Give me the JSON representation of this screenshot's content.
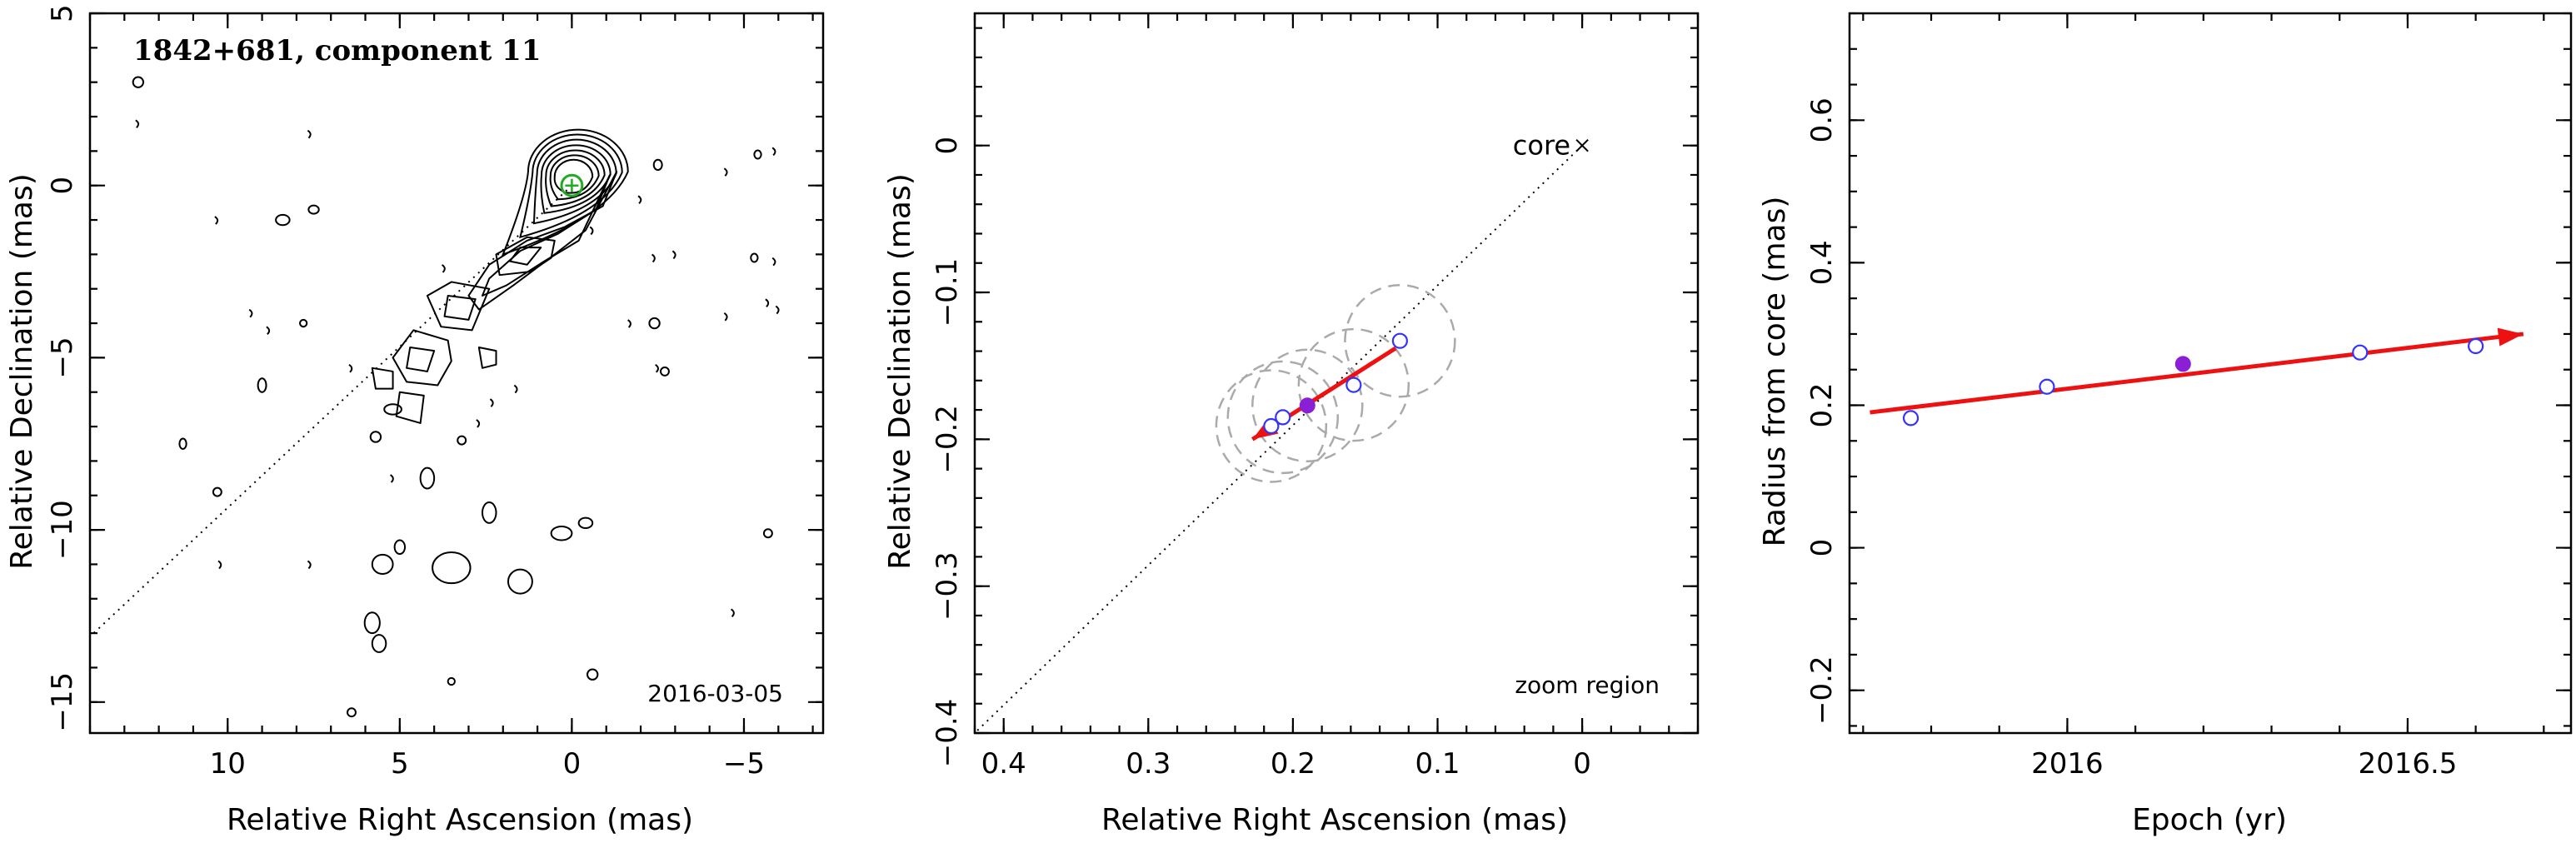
{
  "colors": {
    "arrow": "#ee1111",
    "open_point": "#3333ff",
    "filled_point": "#8a1fd6",
    "beam_circle": "#aaaaaa",
    "core_model": "#22aa22"
  },
  "chart_data": [
    {
      "type": "contour",
      "title": "1842+681, component 11",
      "annotation": "2016-03-05",
      "xlabel": "Relative Right Ascension (mas)",
      "ylabel": "Relative Declination (mas)",
      "xlim": [
        14,
        -7.3
      ],
      "ylim": [
        -15.9,
        5
      ],
      "xticks": [
        10,
        5,
        0,
        -5
      ],
      "yticks": [
        5,
        0,
        -5,
        -10,
        -15
      ],
      "jet_direction_line": {
        "from": [
          0,
          0
        ],
        "to": [
          14,
          -13.1
        ]
      },
      "core_ellipse": {
        "x": 0,
        "y": 0,
        "rx": 0.3,
        "ry": 0.3
      },
      "contours": {
        "core_levels": [
          {
            "cx": -0.05,
            "cy": 0.25,
            "rx": 0.55,
            "ry": 0.5,
            "tail": [
              0.2,
              -0.2
            ]
          },
          {
            "cx": -0.08,
            "cy": 0.28,
            "rx": 0.7,
            "ry": 0.6,
            "tail": [
              0.4,
              -0.4
            ]
          },
          {
            "cx": -0.1,
            "cy": 0.3,
            "rx": 0.85,
            "ry": 0.72,
            "tail": [
              0.6,
              -0.6
            ]
          },
          {
            "cx": -0.12,
            "cy": 0.32,
            "rx": 1.0,
            "ry": 0.85,
            "tail": [
              0.8,
              -0.8
            ]
          },
          {
            "cx": -0.14,
            "cy": 0.35,
            "rx": 1.15,
            "ry": 0.98,
            "tail": [
              1.1,
              -1.1
            ]
          },
          {
            "cx": -0.16,
            "cy": 0.38,
            "rx": 1.3,
            "ry": 1.1,
            "tail": [
              1.5,
              -1.5
            ]
          },
          {
            "cx": -0.18,
            "cy": 0.4,
            "rx": 1.45,
            "ry": 1.22,
            "tail": [
              2.0,
              -2.0
            ]
          }
        ],
        "jet_levels": [
          [
            [
              -1.3,
              0.4
            ],
            [
              -0.9,
              -0.6
            ],
            [
              0.2,
              -1.2
            ],
            [
              1.3,
              -1.6
            ],
            [
              2.4,
              -2.3
            ],
            [
              3.0,
              -3.2
            ],
            [
              2.7,
              -3.6
            ],
            [
              1.7,
              -2.9
            ],
            [
              0.5,
              -2.0
            ],
            [
              -0.4,
              -1.3
            ],
            [
              -1.3,
              0.4
            ]
          ],
          [
            [
              -1.1,
              0.3
            ],
            [
              -0.7,
              -0.7
            ],
            [
              0.4,
              -1.4
            ],
            [
              1.5,
              -1.9
            ],
            [
              2.4,
              -2.7
            ],
            [
              2.6,
              -3.2
            ],
            [
              1.9,
              -2.9
            ],
            [
              0.8,
              -2.2
            ],
            [
              -0.2,
              -1.6
            ],
            [
              -1.1,
              0.3
            ]
          ],
          [
            [
              0.5,
              -1.6
            ],
            [
              1.3,
              -1.5
            ],
            [
              2.2,
              -2.0
            ],
            [
              2.1,
              -2.6
            ],
            [
              1.2,
              -2.5
            ],
            [
              0.6,
              -2.1
            ],
            [
              0.5,
              -1.6
            ]
          ],
          [
            [
              0.9,
              -1.8
            ],
            [
              1.5,
              -1.8
            ],
            [
              1.8,
              -2.2
            ],
            [
              1.3,
              -2.3
            ],
            [
              0.9,
              -1.8
            ]
          ],
          [
            [
              2.4,
              -3.0
            ],
            [
              3.5,
              -2.8
            ],
            [
              4.2,
              -3.2
            ],
            [
              3.8,
              -4.1
            ],
            [
              2.9,
              -4.2
            ],
            [
              2.4,
              -3.0
            ]
          ],
          [
            [
              2.8,
              -3.3
            ],
            [
              3.6,
              -3.2
            ],
            [
              3.7,
              -3.8
            ],
            [
              3.0,
              -3.9
            ],
            [
              2.8,
              -3.3
            ]
          ],
          [
            [
              3.6,
              -4.5
            ],
            [
              4.6,
              -4.2
            ],
            [
              5.2,
              -5.0
            ],
            [
              4.8,
              -5.7
            ],
            [
              3.9,
              -5.8
            ],
            [
              3.5,
              -5.1
            ],
            [
              3.6,
              -4.5
            ]
          ],
          [
            [
              4.0,
              -4.8
            ],
            [
              4.7,
              -4.7
            ],
            [
              4.8,
              -5.3
            ],
            [
              4.2,
              -5.4
            ],
            [
              4.0,
              -4.8
            ]
          ],
          [
            [
              4.3,
              -6.1
            ],
            [
              5.0,
              -6.0
            ],
            [
              5.1,
              -6.7
            ],
            [
              4.4,
              -6.9
            ],
            [
              4.3,
              -6.1
            ]
          ],
          [
            [
              5.2,
              -5.4
            ],
            [
              5.8,
              -5.3
            ],
            [
              5.7,
              -5.9
            ],
            [
              5.2,
              -5.9
            ],
            [
              5.2,
              -5.4
            ]
          ],
          [
            [
              2.2,
              -4.8
            ],
            [
              2.7,
              -4.7
            ],
            [
              2.6,
              -5.3
            ],
            [
              2.2,
              -5.2
            ],
            [
              2.2,
              -4.8
            ]
          ]
        ],
        "islands": [
          {
            "x": 3.5,
            "y": -11.1,
            "rx": 0.55,
            "ry": 0.45
          },
          {
            "x": 1.5,
            "y": -11.5,
            "rx": 0.35,
            "ry": 0.35
          },
          {
            "x": 5.5,
            "y": -11.0,
            "rx": 0.3,
            "ry": 0.28
          },
          {
            "x": 5.8,
            "y": -12.7,
            "rx": 0.22,
            "ry": 0.3
          },
          {
            "x": 5.6,
            "y": -13.3,
            "rx": 0.2,
            "ry": 0.25
          },
          {
            "x": 4.2,
            "y": -8.5,
            "rx": 0.2,
            "ry": 0.3
          },
          {
            "x": 2.4,
            "y": -9.5,
            "rx": 0.2,
            "ry": 0.3
          },
          {
            "x": 5.0,
            "y": -10.5,
            "rx": 0.15,
            "ry": 0.2
          },
          {
            "x": 0.3,
            "y": -10.1,
            "rx": 0.3,
            "ry": 0.2
          },
          {
            "x": -0.4,
            "y": -9.8,
            "rx": 0.2,
            "ry": 0.15
          },
          {
            "x": -2.4,
            "y": -4.0,
            "rx": 0.15,
            "ry": 0.15
          },
          {
            "x": -2.7,
            "y": -5.4,
            "rx": 0.12,
            "ry": 0.12
          },
          {
            "x": 8.4,
            "y": -1.0,
            "rx": 0.2,
            "ry": 0.15
          },
          {
            "x": 7.5,
            "y": -0.7,
            "rx": 0.15,
            "ry": 0.12
          },
          {
            "x": 5.2,
            "y": -6.5,
            "rx": 0.25,
            "ry": 0.15
          },
          {
            "x": 5.7,
            "y": -7.3,
            "rx": 0.15,
            "ry": 0.15
          },
          {
            "x": 3.2,
            "y": -7.4,
            "rx": 0.12,
            "ry": 0.12
          },
          {
            "x": 6.4,
            "y": -15.3,
            "rx": 0.12,
            "ry": 0.12
          },
          {
            "x": 3.5,
            "y": -14.4,
            "rx": 0.1,
            "ry": 0.1
          },
          {
            "x": 12.6,
            "y": 3.0,
            "rx": 0.15,
            "ry": 0.15
          },
          {
            "x": 10.3,
            "y": -8.9,
            "rx": 0.12,
            "ry": 0.12
          },
          {
            "x": 9.0,
            "y": -5.8,
            "rx": 0.12,
            "ry": 0.2
          },
          {
            "x": 11.3,
            "y": -7.5,
            "rx": 0.1,
            "ry": 0.15
          },
          {
            "x": -5.4,
            "y": 0.9,
            "rx": 0.1,
            "ry": 0.12
          },
          {
            "x": -2.5,
            "y": 0.6,
            "rx": 0.12,
            "ry": 0.15
          },
          {
            "x": -5.7,
            "y": -10.1,
            "rx": 0.12,
            "ry": 0.12
          },
          {
            "x": -0.6,
            "y": -14.2,
            "rx": 0.15,
            "ry": 0.15
          },
          {
            "x": -5.3,
            "y": -2.1,
            "rx": 0.1,
            "ry": 0.12
          },
          {
            "x": 7.8,
            "y": -4.0,
            "rx": 0.1,
            "ry": 0.1
          }
        ],
        "marks": [
          {
            "x": 12.6,
            "y": 1.8
          },
          {
            "x": 7.6,
            "y": 1.5
          },
          {
            "x": 10.3,
            "y": -1.0
          },
          {
            "x": 8.8,
            "y": -4.2
          },
          {
            "x": 6.4,
            "y": -5.3
          },
          {
            "x": 2.3,
            "y": -6.3
          },
          {
            "x": 5.2,
            "y": -8.5
          },
          {
            "x": 9.3,
            "y": -3.7
          },
          {
            "x": -0.6,
            "y": -1.3
          },
          {
            "x": -2.4,
            "y": -2.1
          },
          {
            "x": -4.5,
            "y": 0.4
          },
          {
            "x": -5.9,
            "y": 1.0
          },
          {
            "x": -5.9,
            "y": -2.2
          },
          {
            "x": -5.7,
            "y": -3.4
          },
          {
            "x": -6.0,
            "y": -3.6
          },
          {
            "x": -4.5,
            "y": -3.8
          },
          {
            "x": -1.7,
            "y": -4.0
          },
          {
            "x": -2.5,
            "y": -5.3
          },
          {
            "x": -3.0,
            "y": -2.0
          },
          {
            "x": -2.0,
            "y": -0.4
          },
          {
            "x": 3.7,
            "y": -2.4
          },
          {
            "x": 7.6,
            "y": -11.0
          },
          {
            "x": 10.2,
            "y": -11.0
          },
          {
            "x": -4.7,
            "y": -12.4
          },
          {
            "x": 2.7,
            "y": -6.9
          },
          {
            "x": 1.6,
            "y": -5.9
          }
        ]
      }
    },
    {
      "type": "scatter",
      "annotation": "zoom region",
      "core_label": "core",
      "xlabel": "Relative Right Ascension (mas)",
      "ylabel": "Relative Declination (mas)",
      "xlim": [
        0.42,
        -0.08
      ],
      "ylim": [
        -0.4,
        0.09
      ],
      "xticks": [
        "0.4",
        "0.3",
        "0.2",
        "0.1",
        "0"
      ],
      "yticks": [
        "0",
        "−0.1",
        "−0.2",
        "−0.3",
        "−0.4"
      ],
      "xtick_values": [
        0.4,
        0.3,
        0.2,
        0.1,
        0
      ],
      "ytick_values": [
        0,
        -0.1,
        -0.2,
        -0.3,
        -0.4
      ],
      "core": {
        "x": 0,
        "y": 0
      },
      "direction_line": {
        "from": [
          0,
          0
        ],
        "to": [
          0.42,
          -0.4
        ]
      },
      "points": [
        {
          "x": 0.215,
          "y": -0.191,
          "radius": 0.038,
          "filled": false
        },
        {
          "x": 0.207,
          "y": -0.185,
          "radius": 0.038,
          "filled": false
        },
        {
          "x": 0.19,
          "y": -0.177,
          "radius": 0.038,
          "filled": true
        },
        {
          "x": 0.158,
          "y": -0.163,
          "radius": 0.038,
          "filled": false
        },
        {
          "x": 0.126,
          "y": -0.133,
          "radius": 0.038,
          "filled": false
        }
      ],
      "arrow": {
        "from": [
          0.129,
          -0.138
        ],
        "to": [
          0.228,
          -0.2
        ]
      }
    },
    {
      "type": "scatter",
      "xlabel": "Epoch (yr)",
      "ylabel": "Radius from core (mas)",
      "xlim": [
        2015.68,
        2016.74
      ],
      "ylim": [
        -0.26,
        0.75
      ],
      "xticks": [
        "2016",
        "2016.5"
      ],
      "yticks": [
        "−0.2",
        "0",
        "0.2",
        "0.4",
        "0.6"
      ],
      "xtick_values": [
        2016,
        2016.5
      ],
      "ytick_values": [
        -0.2,
        0,
        0.2,
        0.4,
        0.6
      ],
      "points": [
        {
          "x": 2015.77,
          "y": 0.182,
          "filled": false
        },
        {
          "x": 2015.97,
          "y": 0.226,
          "filled": false
        },
        {
          "x": 2016.17,
          "y": 0.258,
          "filled": true
        },
        {
          "x": 2016.43,
          "y": 0.274,
          "filled": false
        },
        {
          "x": 2016.6,
          "y": 0.283,
          "filled": false
        }
      ],
      "arrow": {
        "from": [
          2015.71,
          0.19
        ],
        "to": [
          2016.67,
          0.3
        ]
      }
    }
  ]
}
